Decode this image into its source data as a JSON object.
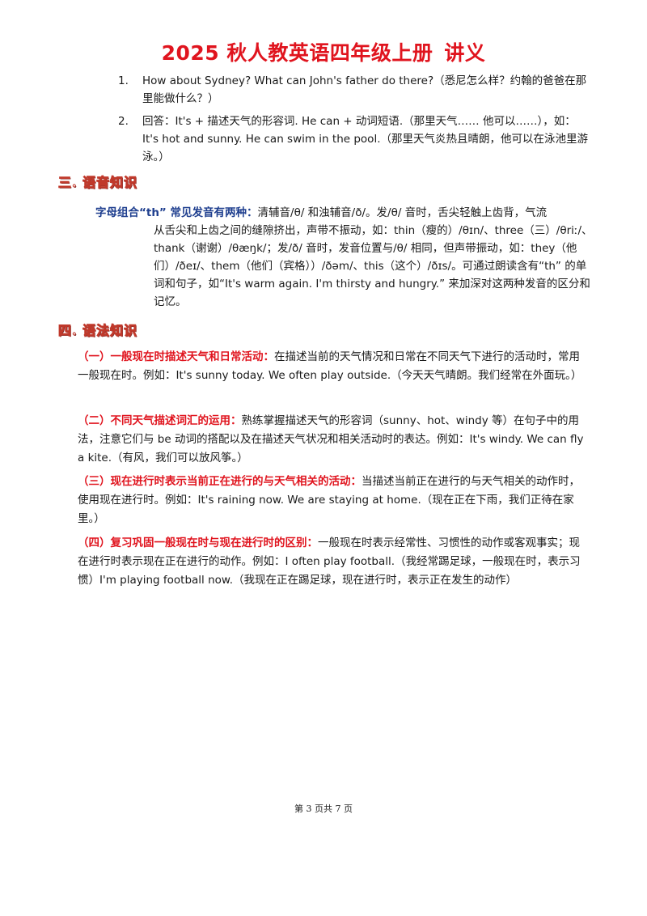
{
  "doc": {
    "title_main": "2025 秋人教英语四年级上册",
    "title_tail": "讲义"
  },
  "list": [
    {
      "num": "1.",
      "text": "How about Sydney? What can John's father do there?（悉尼怎么样？约翰的爸爸在那里能做什么？）"
    },
    {
      "num": "2.",
      "text": "回答：It's + 描述天气的形容词. He can + 动词短语.（那里天气…… 他可以……），如：It's hot and sunny. He can swim in the pool.（那里天气炎热且晴朗，他可以在泳池里游泳。）"
    }
  ],
  "section3": {
    "heading": "三. 语音知识",
    "lead": "字母组合“th” 常见发音有两种：",
    "first_line": "清辅音/θ/ 和浊辅音/ð/。发/θ/ 音时，舌尖轻触上齿背，气流",
    "rest": "从舌尖和上齿之间的缝隙挤出，声带不振动，如：thin（瘦的）/θɪn/、three（三）/θriː/、thank（谢谢）/θæŋk/；发/ð/ 音时，发音位置与/θ/ 相同，但声带振动，如：they（他们）/ðeɪ/、them（他们（宾格））/ðəm/、this（这个）/ðɪs/。可通过朗读含有“th” 的单词和句子，如“It's warm again. I'm thirsty and hungry.” 来加深对这两种发音的区分和记忆。"
  },
  "section4": {
    "heading": "四. 语法知识",
    "items": [
      {
        "lead": "（一）一般现在时描述天气和日常活动：",
        "text": "在描述当前的天气情况和日常在不同天气下进行的活动时，常用一般现在时。例如：It's sunny today. We often play outside.（今天天气晴朗。我们经常在外面玩。）"
      },
      {
        "lead": "（二）不同天气描述词汇的运用：",
        "text": "熟练掌握描述天气的形容词（sunny、hot、windy 等）在句子中的用法，注意它们与 be 动词的搭配以及在描述天气状况和相关活动时的表达。例如：It's windy. We can fly a kite.（有风，我们可以放风筝。）"
      },
      {
        "lead": "（三）现在进行时表示当前正在进行的与天气相关的活动：",
        "text": "当描述当前正在进行的与天气相关的动作时，使用现在进行时。例如：It's raining now. We are staying at home.（现在正在下雨，我们正待在家里。）"
      },
      {
        "lead": "（四）复习巩固一般现在时与现在进行时的区别：",
        "text": "一般现在时表示经常性、习惯性的动作或客观事实；现在进行时表示现在正在进行的动作。例如：I often play football.（我经常踢足球，一般现在时，表示习惯）I'm playing football now.（我现在正在踢足球，现在进行时，表示正在发生的动作）"
      }
    ]
  },
  "footer": {
    "page": "第 3 页共 7 页"
  }
}
